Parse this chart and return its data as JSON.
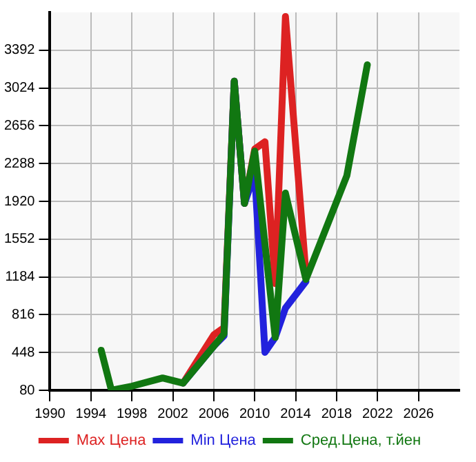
{
  "chart_data": {
    "type": "line",
    "xlim": [
      1990,
      2030
    ],
    "xticks": [
      1990,
      1994,
      1998,
      2002,
      2006,
      2010,
      2014,
      2018,
      2022,
      2026
    ],
    "ylim": [
      80,
      3760
    ],
    "yticks": [
      80,
      448,
      816,
      1184,
      1552,
      1920,
      2288,
      2656,
      3024,
      3392
    ],
    "grid": true,
    "legend": "bottom",
    "marker": "none",
    "line_style": "solid",
    "series": [
      {
        "name": "Max Цена",
        "color": "#dd2222",
        "x": [
          2003,
          2006,
          2007,
          2008,
          2009,
          2010,
          2011,
          2012,
          2013,
          2015
        ],
        "values": [
          150,
          620,
          690,
          3090,
          1900,
          2430,
          2500,
          1120,
          3720,
          1220
        ]
      },
      {
        "name": "Min Цена",
        "color": "#2222dd",
        "x": [
          2003,
          2006,
          2007,
          2008,
          2009,
          2010,
          2011,
          2012,
          2013,
          2015
        ],
        "values": [
          150,
          510,
          610,
          3090,
          1900,
          2190,
          450,
          595,
          880,
          1140
        ]
      },
      {
        "name": "Сред.Цена, т.йен",
        "color": "#117711",
        "x": [
          1995,
          1996,
          1998,
          2001,
          2003,
          2007,
          2008,
          2009,
          2010,
          2012,
          2013,
          2015,
          2019,
          2021
        ],
        "values": [
          470,
          80,
          120,
          200,
          150,
          630,
          3090,
          1900,
          2410,
          595,
          2000,
          1160,
          2170,
          3250
        ]
      }
    ]
  }
}
